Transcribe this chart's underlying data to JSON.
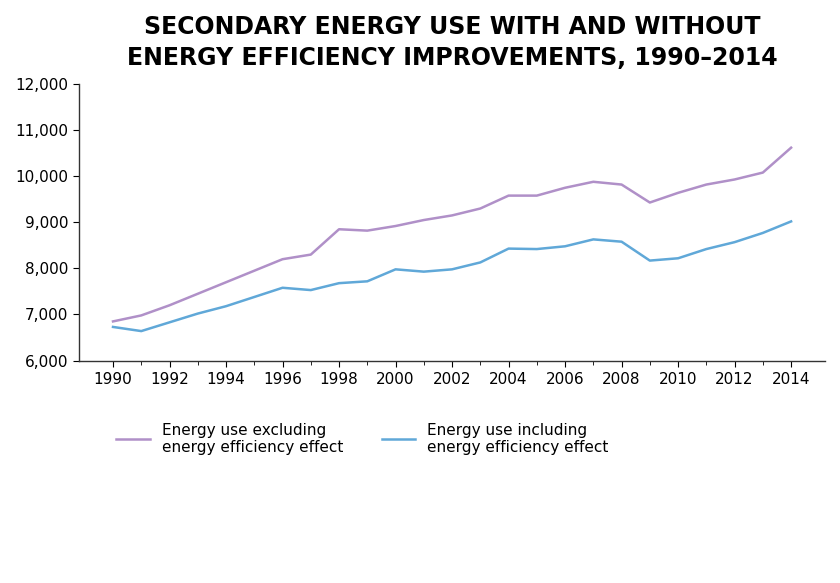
{
  "title_line1": "SECONDARY ENERGY USE WITH AND WITHOUT",
  "title_line2": "ENERGY EFFICIENCY IMPROVEMENTS, 1990–2014",
  "years": [
    1990,
    1991,
    1992,
    1993,
    1994,
    1995,
    1996,
    1997,
    1998,
    1999,
    2000,
    2001,
    2002,
    2003,
    2004,
    2005,
    2006,
    2007,
    2008,
    2009,
    2010,
    2011,
    2012,
    2013,
    2014
  ],
  "excluding": [
    6850,
    6980,
    7200,
    7450,
    7700,
    7950,
    8200,
    8300,
    8850,
    8820,
    8920,
    9050,
    9150,
    9300,
    9580,
    9580,
    9750,
    9880,
    9820,
    9430,
    9640,
    9820,
    9930,
    10080,
    10620
  ],
  "including": [
    6730,
    6640,
    6830,
    7020,
    7180,
    7380,
    7580,
    7530,
    7680,
    7720,
    7980,
    7930,
    7980,
    8130,
    8430,
    8420,
    8480,
    8630,
    8580,
    8170,
    8220,
    8420,
    8570,
    8770,
    9020
  ],
  "excl_color": "#b090c8",
  "incl_color": "#60a8d8",
  "ylim": [
    6000,
    12000
  ],
  "yticks": [
    6000,
    7000,
    8000,
    9000,
    10000,
    11000,
    12000
  ],
  "xticks": [
    1990,
    1992,
    1994,
    1996,
    1998,
    2000,
    2002,
    2004,
    2006,
    2008,
    2010,
    2012,
    2014
  ],
  "legend_excl": "Energy use excluding\nenergy efficiency effect",
  "legend_incl": "Energy use including\nenergy efficiency effect",
  "title_fontsize": 17,
  "axis_fontsize": 11,
  "legend_fontsize": 11,
  "linewidth": 1.8
}
